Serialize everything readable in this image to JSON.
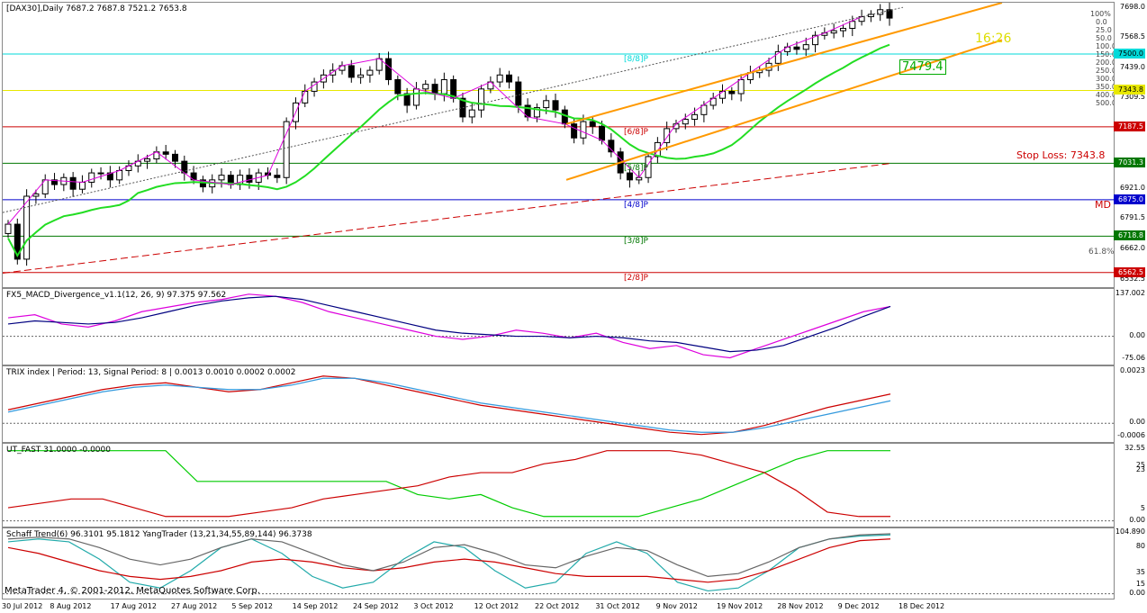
{
  "chart_data": [
    {
      "type": "candlestick",
      "title": "[DAX30],Daily  7687.2 7687.8 7521.2 7653.8",
      "ylim": [
        6500,
        7720
      ],
      "y_ticks": [
        "7698.0",
        "7568.5",
        "7439.0",
        "7309.5",
        "6921.0",
        "6791.5",
        "6662.0",
        "6532.5"
      ],
      "x_labels": [
        "30 Jul 2012",
        "8 Aug 2012",
        "17 Aug 2012",
        "27 Aug 2012",
        "5 Sep 2012",
        "14 Sep 2012",
        "24 Sep 2012",
        "3 Oct 2012",
        "12 Oct 2012",
        "22 Oct 2012",
        "31 Oct 2012",
        "9 Nov 2012",
        "19 Nov 2012",
        "28 Nov 2012",
        "9 Dec 2012",
        "18 Dec 2012"
      ],
      "closes": [
        6770,
        6620,
        6890,
        6900,
        6960,
        6940,
        6970,
        6920,
        6950,
        6990,
        6990,
        6960,
        7000,
        7020,
        7040,
        7050,
        7080,
        7070,
        7040,
        6990,
        6960,
        6930,
        6960,
        6980,
        6940,
        6980,
        6950,
        6990,
        6980,
        6970,
        7210,
        7290,
        7340,
        7380,
        7410,
        7430,
        7450,
        7400,
        7410,
        7430,
        7480,
        7390,
        7330,
        7280,
        7350,
        7370,
        7330,
        7390,
        7310,
        7230,
        7260,
        7350,
        7380,
        7410,
        7380,
        7280,
        7230,
        7270,
        7300,
        7260,
        7200,
        7140,
        7210,
        7190,
        7130,
        7080,
        6990,
        6960,
        6970,
        7060,
        7120,
        7180,
        7200,
        7220,
        7240,
        7280,
        7310,
        7340,
        7330,
        7390,
        7420,
        7430,
        7460,
        7510,
        7530,
        7520,
        7540,
        7580,
        7590,
        7600,
        7610,
        7640,
        7660,
        7670,
        7690,
        7654
      ],
      "levels": [
        {
          "price": 7500.0,
          "label": "7500.0",
          "color": "#00dada",
          "murrey": "[8/8]P"
        },
        {
          "price": 7343.8,
          "label": "7343.8",
          "color": "#e8e800",
          "murrey": ""
        },
        {
          "price": 7187.5,
          "label": "7187.5",
          "color": "#cc0000",
          "murrey": "[6/8]P"
        },
        {
          "price": 7031.3,
          "label": "7031.3",
          "color": "#007700",
          "murrey": "[5/8]P"
        },
        {
          "price": 6875.0,
          "label": "6875.0",
          "color": "#0000cc",
          "murrey": "[4/8]P"
        },
        {
          "price": 6718.8,
          "label": "6718.8",
          "color": "#007700",
          "murrey": "[3/8]P"
        },
        {
          "price": 6562.5,
          "label": "6562.5",
          "color": "#cc0000",
          "murrey": "[2/8]P"
        }
      ],
      "annotations": {
        "stop_loss": "Stop Loss: 7343.8",
        "md": "MD",
        "price_label": "7479.4",
        "timer": "16:26",
        "fib_pct": "61.8%",
        "pct_100": "100%"
      },
      "fan_labels": [
        "100%",
        "0.0",
        "25.0",
        "50.0",
        "100.0",
        "150.0",
        "200.0",
        "250.0",
        "300.0",
        "350.0",
        "400.0",
        "500.0"
      ],
      "grid": false
    },
    {
      "type": "line",
      "title": "FX5_MACD_Divergence_v1.1(12, 26, 9) 97.375 97.562",
      "y_ticks": [
        "137.002",
        "0.00",
        "-75.06"
      ],
      "series": [
        {
          "color": "#dd00dd",
          "values": [
            60,
            70,
            40,
            30,
            50,
            80,
            95,
            110,
            120,
            137,
            130,
            110,
            80,
            60,
            40,
            20,
            0,
            -10,
            0,
            20,
            10,
            -5,
            10,
            -20,
            -40,
            -30,
            -60,
            -70,
            -40,
            -10,
            20,
            50,
            80,
            97
          ]
        },
        {
          "color": "#000080",
          "values": [
            40,
            50,
            45,
            40,
            45,
            60,
            80,
            100,
            115,
            125,
            130,
            120,
            100,
            80,
            60,
            40,
            20,
            10,
            5,
            0,
            0,
            -5,
            0,
            -5,
            -15,
            -20,
            -35,
            -50,
            -45,
            -30,
            0,
            30,
            65,
            97
          ]
        }
      ]
    },
    {
      "type": "line",
      "title": "TRIX index | Period: 13, Signal Period: 8 |  0.0013 0.0010 0.0002 0.0002",
      "y_ticks": [
        "0.0023",
        "0.00",
        "-0.0006"
      ],
      "series": [
        {
          "color": "#cc0000",
          "values": [
            0.0006,
            0.0009,
            0.0012,
            0.0015,
            0.0017,
            0.0018,
            0.0016,
            0.0014,
            0.0015,
            0.0018,
            0.0021,
            0.002,
            0.0017,
            0.0014,
            0.0011,
            0.0008,
            0.0006,
            0.0004,
            0.0002,
            0.0,
            -0.0002,
            -0.0004,
            -0.0005,
            -0.0004,
            -0.0001,
            0.0003,
            0.0007,
            0.001,
            0.0013
          ]
        },
        {
          "color": "#3399dd",
          "values": [
            0.0005,
            0.0008,
            0.0011,
            0.0014,
            0.0016,
            0.0017,
            0.0016,
            0.0015,
            0.0015,
            0.0017,
            0.002,
            0.002,
            0.0018,
            0.0015,
            0.0012,
            0.0009,
            0.0007,
            0.0005,
            0.0003,
            0.0001,
            -0.0001,
            -0.0003,
            -0.0004,
            -0.0004,
            -0.0002,
            0.0001,
            0.0004,
            0.0007,
            0.001
          ]
        }
      ]
    },
    {
      "type": "line",
      "title": "UT_FAST 31.0000 -0.0000",
      "y_ticks": [
        "32.55",
        "25",
        "23",
        "5",
        "0.00"
      ],
      "series": [
        {
          "color": "#00cc00",
          "values": [
            32,
            32,
            32,
            32,
            32,
            32,
            18,
            18,
            18,
            18,
            18,
            18,
            18,
            12,
            10,
            12,
            6,
            2,
            2,
            2,
            2,
            6,
            10,
            16,
            22,
            28,
            32,
            32,
            32
          ]
        },
        {
          "color": "#cc0000",
          "values": [
            6,
            8,
            10,
            10,
            6,
            2,
            2,
            2,
            4,
            6,
            10,
            12,
            14,
            16,
            20,
            22,
            22,
            26,
            28,
            32,
            32,
            32,
            30,
            26,
            22,
            14,
            4,
            2,
            2
          ]
        }
      ]
    },
    {
      "type": "line",
      "title": "Schaff Trend(6) 96.3101 95.1812  YangTrader (13,21,34,55,89,144) 96.3738",
      "y_ticks": [
        "104.890",
        "80",
        "35",
        "15",
        "0.00"
      ],
      "series": [
        {
          "color": "#22aaaa",
          "values": [
            90,
            95,
            90,
            60,
            20,
            10,
            40,
            80,
            95,
            70,
            30,
            10,
            20,
            60,
            90,
            80,
            40,
            10,
            20,
            70,
            90,
            70,
            20,
            5,
            10,
            40,
            80,
            95,
            100,
            102
          ]
        },
        {
          "color": "#cc0000",
          "values": [
            80,
            70,
            55,
            40,
            30,
            25,
            30,
            40,
            55,
            60,
            55,
            45,
            40,
            45,
            55,
            60,
            55,
            45,
            35,
            30,
            30,
            30,
            25,
            20,
            25,
            40,
            60,
            80,
            92,
            95
          ]
        },
        {
          "color": "#666666",
          "values": [
            95,
            98,
            95,
            80,
            60,
            50,
            60,
            80,
            95,
            90,
            70,
            50,
            40,
            55,
            80,
            85,
            70,
            50,
            45,
            65,
            80,
            75,
            50,
            30,
            35,
            55,
            80,
            95,
            102,
            104
          ]
        }
      ]
    }
  ],
  "footer": {
    "copyright": "MetaTrader 4, © 2001-2012, MetaQuotes Software Corp."
  }
}
